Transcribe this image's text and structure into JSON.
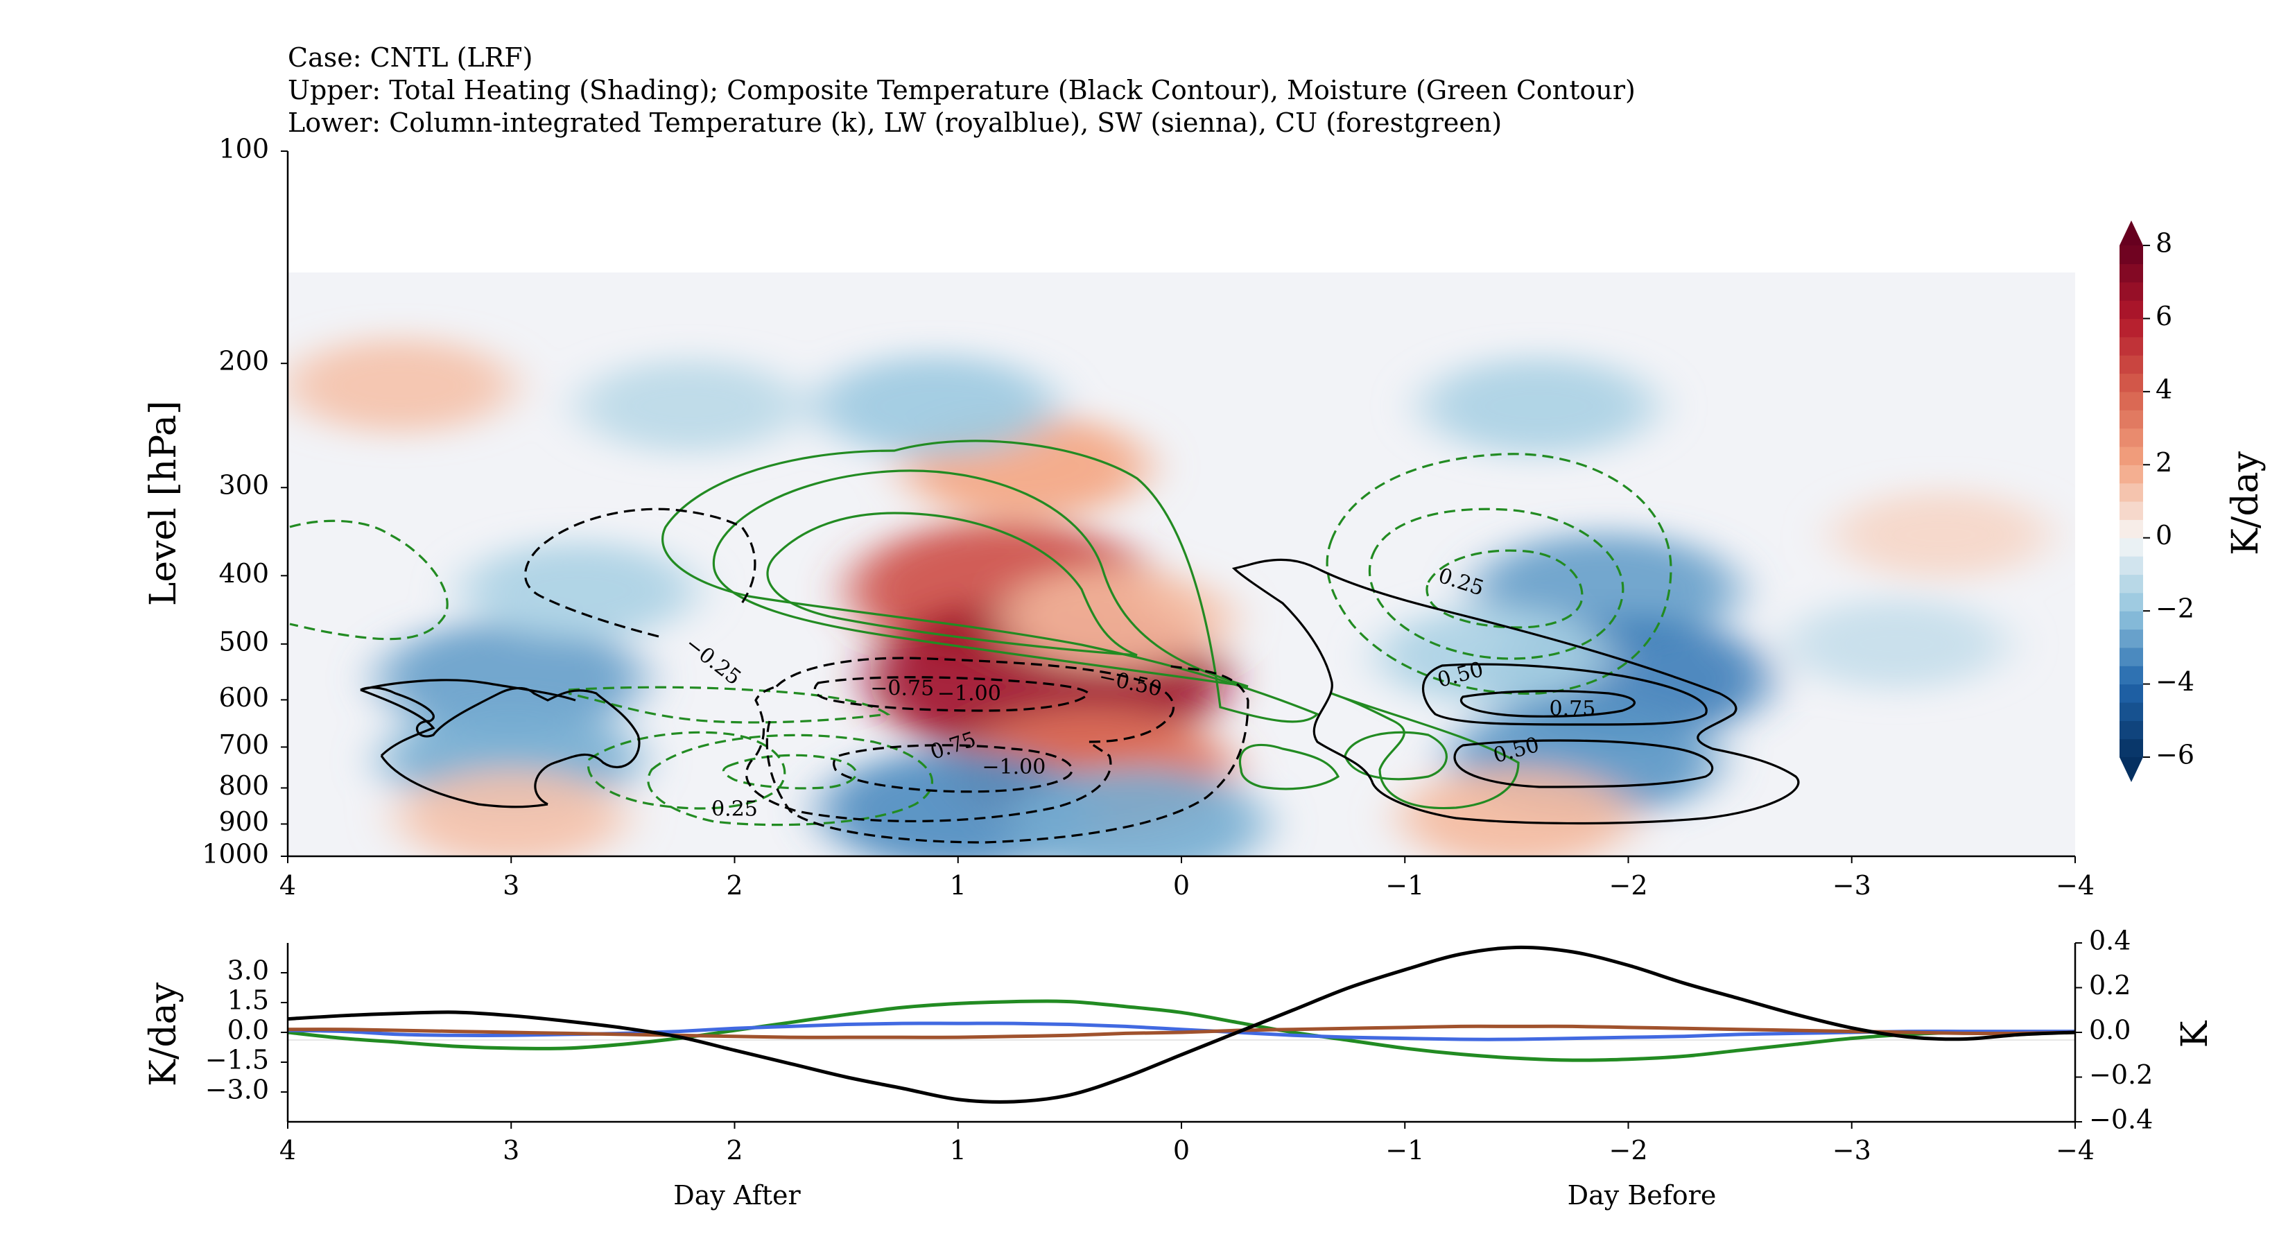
{
  "header": {
    "line1": "Case: CNTL (LRF)",
    "line2": "Upper: Total Heating (Shading); Composite Temperature (Black Contour), Moisture (Green Contour)",
    "line3": "Lower: Column-integrated Temperature (k), LW (royalblue), SW (sienna), CU (forestgreen)"
  },
  "chart_data": [
    {
      "type": "heatmap",
      "description_fields": "composite time-pressure cross-section",
      "ylabel": "Level [hPa]",
      "x_ticks": [
        "4",
        "3",
        "2",
        "1",
        "0",
        "−1",
        "−2",
        "−3",
        "−4"
      ],
      "x_tick_values": [
        4,
        3,
        2,
        1,
        0,
        -1,
        -2,
        -3,
        -4
      ],
      "xlim": [
        4,
        -4
      ],
      "y_ticks": [
        "100",
        "200",
        "300",
        "400",
        "500",
        "600",
        "700",
        "800",
        "900",
        "1000"
      ],
      "y_tick_values": [
        100,
        200,
        300,
        400,
        500,
        600,
        700,
        800,
        900,
        1000
      ],
      "ylim": [
        1000,
        100
      ],
      "y_scale": "log",
      "colorbar": {
        "label": "K/day",
        "ticks": [
          "8",
          "6",
          "4",
          "2",
          "0",
          "−2",
          "−4",
          "−6"
        ],
        "tick_values": [
          8,
          6,
          4,
          2,
          0,
          -2,
          -4,
          -6
        ],
        "range": [
          -6,
          8
        ],
        "extend": "both"
      },
      "heating_blobs": [
        {
          "day": 0.8,
          "level": 420,
          "value": 4.5
        },
        {
          "day": 0.6,
          "level": 560,
          "value": 6.5
        },
        {
          "day": 0.4,
          "level": 760,
          "value": 3.5
        },
        {
          "day": 0.7,
          "level": 280,
          "value": 2.0
        },
        {
          "day": 0.3,
          "level": 460,
          "value": 1.5
        },
        {
          "day": -1.9,
          "level": 420,
          "value": -2.8
        },
        {
          "day": -2.0,
          "level": 560,
          "value": -3.5
        },
        {
          "day": -1.4,
          "level": 520,
          "value": -1.5
        },
        {
          "day": 3.0,
          "level": 560,
          "value": -2.8
        },
        {
          "day": 2.7,
          "level": 420,
          "value": -1.5
        },
        {
          "day": 1.0,
          "level": 860,
          "value": -3.2
        },
        {
          "day": 0.2,
          "level": 900,
          "value": -2.5
        },
        {
          "day": -1.8,
          "level": 730,
          "value": -3.0
        },
        {
          "day": 3.0,
          "level": 730,
          "value": -2.5
        },
        {
          "day": 2.2,
          "level": 230,
          "value": -1.2
        },
        {
          "day": 1.1,
          "level": 230,
          "value": -1.8
        },
        {
          "day": -1.6,
          "level": 230,
          "value": -1.5
        },
        {
          "day": 3.5,
          "level": 215,
          "value": 1.3
        },
        {
          "day": 3.0,
          "level": 880,
          "value": 1.3
        },
        {
          "day": -1.5,
          "level": 880,
          "value": 1.5
        },
        {
          "day": -3.2,
          "level": 500,
          "value": -1.0
        },
        {
          "day": -3.4,
          "level": 350,
          "value": 0.8
        }
      ],
      "temperature_contour_labels": [
        {
          "text": "0.25",
          "day": 2.0,
          "level": 860,
          "rotate": 0
        },
        {
          "text": "−0.25",
          "day": 2.1,
          "level": 530,
          "rotate": 38
        },
        {
          "text": "−0.75",
          "day": 1.25,
          "level": 580,
          "rotate": 0
        },
        {
          "text": "−1.00",
          "day": 0.95,
          "level": 590,
          "rotate": 0
        },
        {
          "text": "−0.50",
          "day": 0.23,
          "level": 570,
          "rotate": 12
        },
        {
          "text": "0.75",
          "day": 1.02,
          "level": 700,
          "rotate": -18
        },
        {
          "text": "−1.00",
          "day": 0.75,
          "level": 750,
          "rotate": 0
        },
        {
          "text": "0.25",
          "day": -1.25,
          "level": 410,
          "rotate": 18
        },
        {
          "text": "0.50",
          "day": -1.25,
          "level": 555,
          "rotate": -15
        },
        {
          "text": "0.75",
          "day": -1.75,
          "level": 620,
          "rotate": 0
        },
        {
          "text": "0.50",
          "day": -1.5,
          "level": 710,
          "rotate": -15
        }
      ],
      "contour_colors": {
        "temperature": "#000000",
        "moisture": "#228b22"
      }
    },
    {
      "type": "line",
      "ylabel": "K/day",
      "ylabel_right": "K",
      "x_ticks": [
        "4",
        "3",
        "2",
        "1",
        "0",
        "−1",
        "−2",
        "−3",
        "−4"
      ],
      "x_tick_values": [
        4,
        3,
        2,
        1,
        0,
        -1,
        -2,
        -3,
        -4
      ],
      "xlim": [
        4,
        -4
      ],
      "y_ticks": [
        "3.0",
        "1.5",
        "0.0",
        "−1.5",
        "−3.0"
      ],
      "y_tick_values": [
        3.0,
        1.5,
        0.0,
        -1.5,
        -3.0
      ],
      "ylim": [
        -4.5,
        4.5
      ],
      "y_ticks_right": [
        "0.4",
        "0.2",
        "0.0",
        "−0.2",
        "−0.4"
      ],
      "y_tick_values_right": [
        0.4,
        0.2,
        0.0,
        -0.2,
        -0.4
      ],
      "ylim_right": [
        -0.4,
        0.4
      ],
      "x": [
        4,
        3.75,
        3.5,
        3.25,
        3,
        2.75,
        2.5,
        2.25,
        2,
        1.75,
        1.5,
        1.25,
        1,
        0.75,
        0.5,
        0.25,
        0,
        -0.25,
        -0.5,
        -0.75,
        -1,
        -1.25,
        -1.5,
        -1.75,
        -2,
        -2.25,
        -2.5,
        -2.75,
        -3,
        -3.25,
        -3.5,
        -3.75,
        -4
      ],
      "series": [
        {
          "color": "#000000",
          "axis": "right",
          "values": [
            0.06,
            0.075,
            0.085,
            0.09,
            0.075,
            0.05,
            0.02,
            -0.02,
            -0.08,
            -0.14,
            -0.2,
            -0.25,
            -0.3,
            -0.31,
            -0.28,
            -0.2,
            -0.1,
            0.0,
            0.1,
            0.2,
            0.28,
            0.35,
            0.38,
            0.36,
            0.3,
            0.22,
            0.15,
            0.08,
            0.02,
            -0.02,
            -0.03,
            -0.01,
            0.0
          ]
        },
        {
          "color": "#4169e1",
          "axis": "left",
          "values": [
            0.1,
            0.05,
            -0.1,
            -0.15,
            -0.15,
            -0.1,
            -0.05,
            0.05,
            0.2,
            0.3,
            0.4,
            0.45,
            0.45,
            0.45,
            0.4,
            0.3,
            0.15,
            0.0,
            -0.15,
            -0.25,
            -0.3,
            -0.35,
            -0.35,
            -0.3,
            -0.25,
            -0.2,
            -0.1,
            -0.05,
            0.0,
            0.05,
            0.05,
            0.05,
            0.05
          ]
        },
        {
          "color": "#a0522d",
          "axis": "left",
          "values": [
            0.15,
            0.15,
            0.1,
            0.05,
            0.0,
            -0.05,
            -0.1,
            -0.15,
            -0.2,
            -0.25,
            -0.25,
            -0.25,
            -0.25,
            -0.2,
            -0.15,
            -0.05,
            0.0,
            0.1,
            0.15,
            0.2,
            0.25,
            0.3,
            0.3,
            0.3,
            0.25,
            0.2,
            0.15,
            0.1,
            0.05,
            0.0,
            -0.05,
            -0.05,
            0.0
          ]
        },
        {
          "color": "#228b22",
          "axis": "left",
          "values": [
            0.0,
            -0.3,
            -0.5,
            -0.7,
            -0.8,
            -0.8,
            -0.6,
            -0.3,
            0.1,
            0.5,
            0.9,
            1.25,
            1.45,
            1.55,
            1.55,
            1.3,
            1.0,
            0.5,
            0.0,
            -0.4,
            -0.8,
            -1.1,
            -1.3,
            -1.4,
            -1.35,
            -1.2,
            -0.9,
            -0.6,
            -0.3,
            -0.1,
            0.0,
            0.0,
            0.0
          ]
        }
      ],
      "annotations": [
        "Day After",
        "Day Before"
      ]
    }
  ]
}
